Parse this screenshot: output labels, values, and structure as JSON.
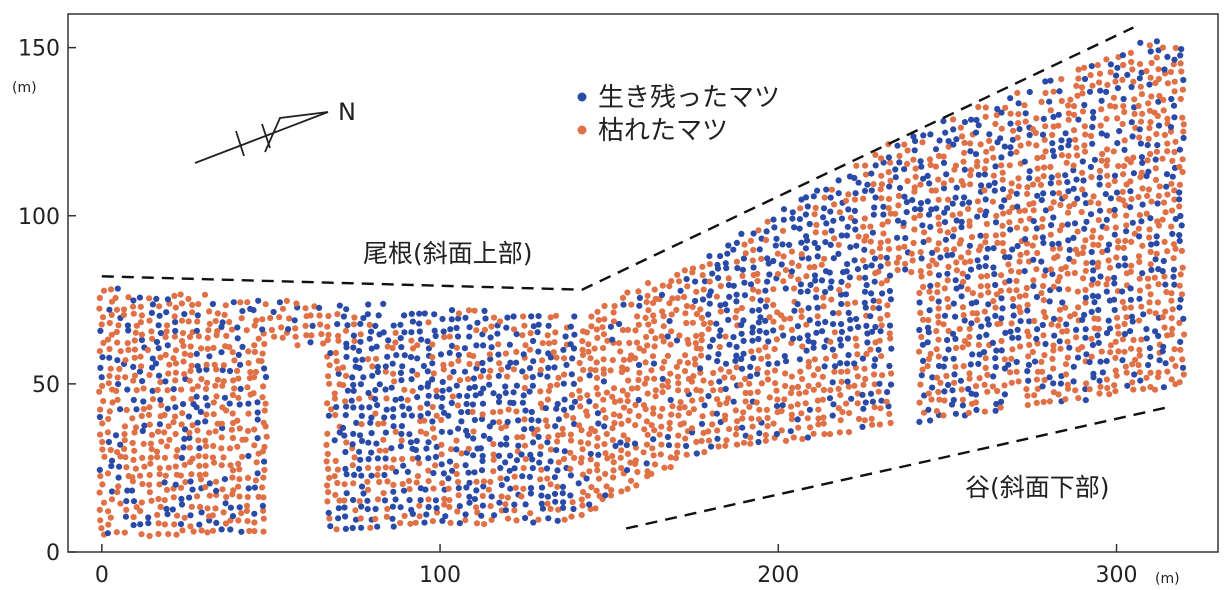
{
  "chart_data": {
    "type": "scatter",
    "xlabel_unit": "(m)",
    "ylabel_unit": "(m)",
    "xlim": [
      -10,
      330
    ],
    "ylim": [
      0,
      160
    ],
    "x_ticks": [
      0,
      100,
      200,
      300
    ],
    "y_ticks": [
      0,
      50,
      100,
      150
    ],
    "series": [
      {
        "name": "生き残ったマツ",
        "color": "#2a4aa8"
      },
      {
        "name": "枯れたマツ",
        "color": "#e07046"
      }
    ],
    "legend_position": "top-center",
    "annotations": {
      "ridge": "尾根(斜面上部)",
      "valley": "谷(斜面下部)",
      "north": "N"
    },
    "plot_boundary_lower": [
      [
        0,
        5
      ],
      [
        140,
        10
      ],
      [
        175,
        30
      ],
      [
        320,
        50
      ]
    ],
    "plot_boundary_upper": [
      [
        0,
        78
      ],
      [
        140,
        70
      ],
      [
        175,
        86
      ],
      [
        235,
        122
      ],
      [
        310,
        152
      ],
      [
        320,
        150
      ]
    ],
    "ridge_line": [
      [
        0,
        82
      ],
      [
        142,
        78
      ],
      [
        305,
        156
      ]
    ],
    "valley_line": [
      [
        155,
        7
      ],
      [
        315,
        43
      ]
    ],
    "gaps": [
      {
        "x": [
          49,
          67
        ],
        "ymin": 62
      },
      {
        "x": [
          233,
          241
        ],
        "ymin": 82
      },
      {
        "x": [
          268,
          272
        ],
        "ymin": 50
      }
    ]
  }
}
